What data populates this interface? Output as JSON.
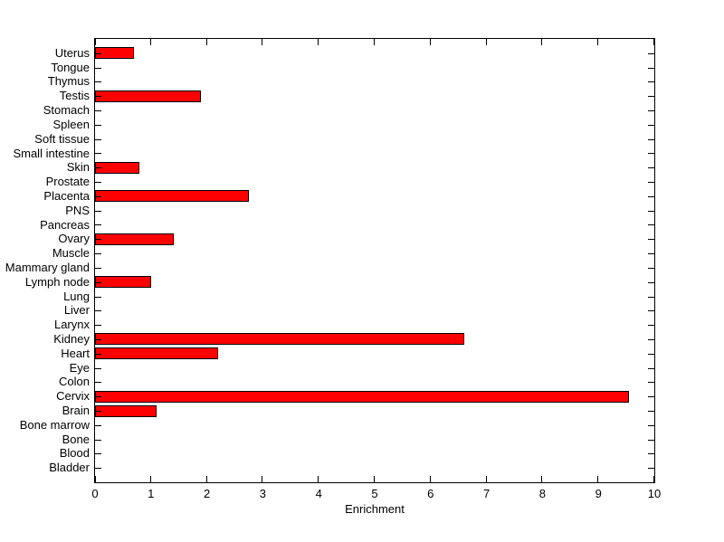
{
  "chart_data": {
    "type": "bar",
    "orientation": "horizontal",
    "title": "",
    "xlabel": "Enrichment",
    "ylabel": "",
    "xlim": [
      0,
      10
    ],
    "xticks": [
      0,
      1,
      2,
      3,
      4,
      5,
      6,
      7,
      8,
      9,
      10
    ],
    "grid": false,
    "legend_position": "none",
    "background_color": "#FFFFFF",
    "axis_color": "#000000",
    "bar_color": "#FF0000",
    "bar_edge_color": "#000000",
    "categories": [
      "Uterus",
      "Tongue",
      "Thymus",
      "Testis",
      "Stomach",
      "Spleen",
      "Soft tissue",
      "Small intestine",
      "Skin",
      "Prostate",
      "Placenta",
      "PNS",
      "Pancreas",
      "Ovary",
      "Muscle",
      "Mammary gland",
      "Lymph node",
      "Lung",
      "Liver",
      "Larynx",
      "Kidney",
      "Heart",
      "Eye",
      "Colon",
      "Cervix",
      "Brain",
      "Bone marrow",
      "Bone",
      "Blood",
      "Bladder"
    ],
    "values": [
      0.7,
      0,
      0,
      1.9,
      0,
      0,
      0,
      0,
      0.8,
      0,
      2.75,
      0,
      0,
      1.4,
      0,
      0,
      1.0,
      0,
      0,
      0,
      6.6,
      2.2,
      0,
      0,
      9.55,
      1.1,
      0,
      0,
      0,
      0
    ]
  }
}
